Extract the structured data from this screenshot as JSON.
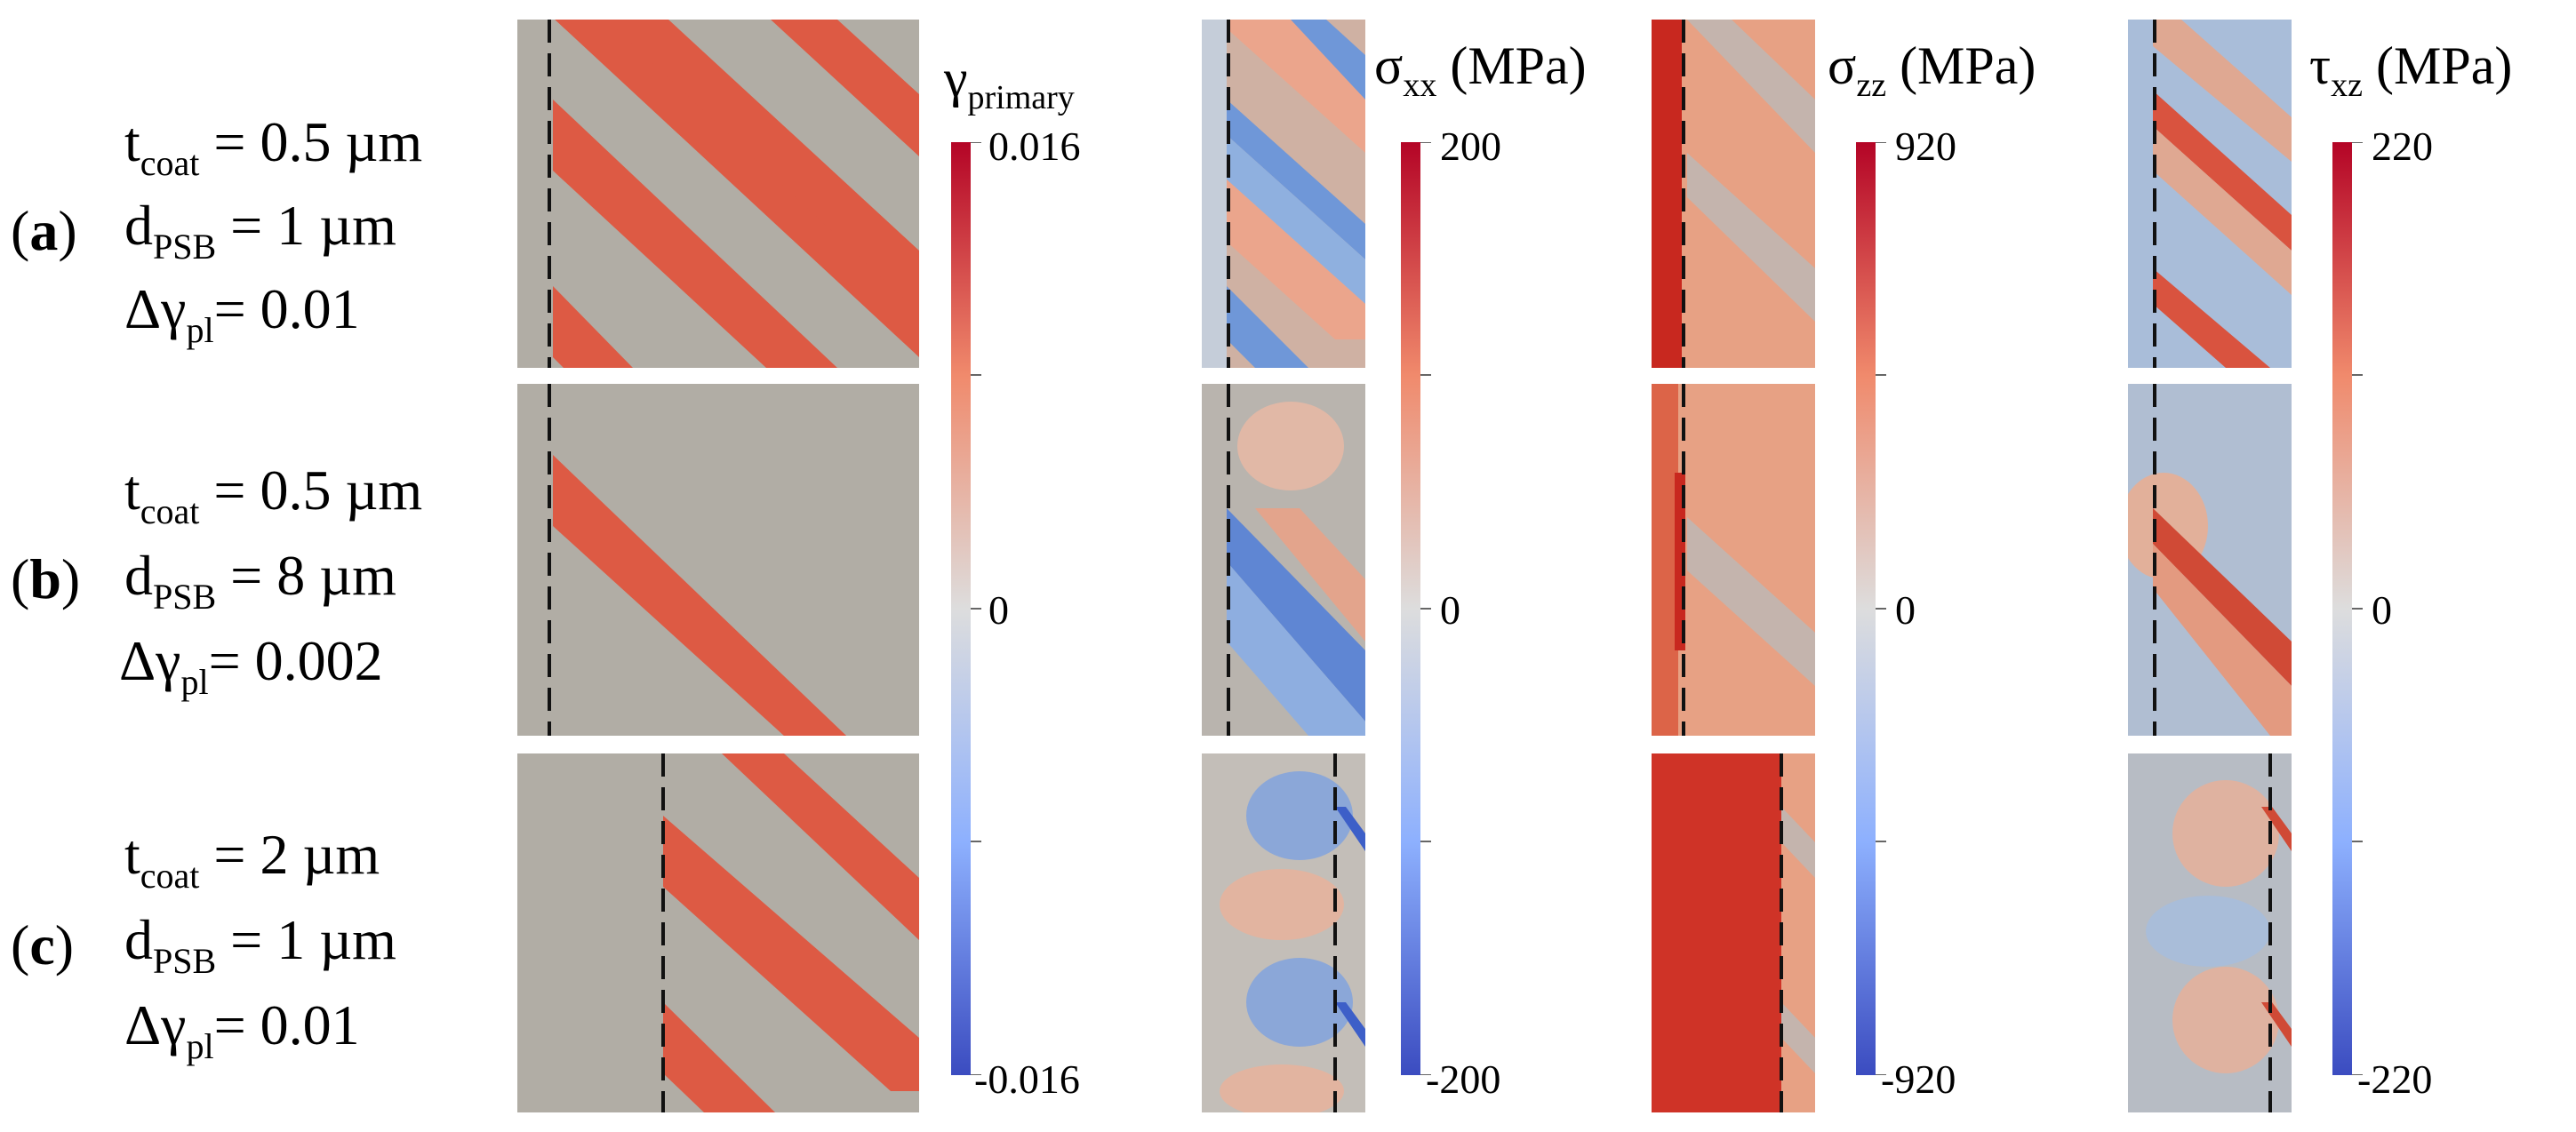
{
  "rows": [
    {
      "id": "a",
      "label": "a",
      "t_coat": {
        "symbol": "t",
        "sub": "coat",
        "rest": " = 0.5 µm"
      },
      "d_psb": {
        "symbol": "d",
        "sub": "PSB",
        "rest": " = 1 µm"
      },
      "dgamma": {
        "symbol": "Δγ",
        "sub": "pl",
        "rest": "= 0.01"
      }
    },
    {
      "id": "b",
      "label": "b",
      "t_coat": {
        "symbol": "t",
        "sub": "coat",
        "rest": " = 0.5 µm"
      },
      "d_psb": {
        "symbol": "d",
        "sub": "PSB",
        "rest": " = 8 µm"
      },
      "dgamma": {
        "symbol": "Δγ",
        "sub": "pl",
        "rest": "= 0.002"
      }
    },
    {
      "id": "c",
      "label": "c",
      "t_coat": {
        "symbol": "t",
        "sub": "coat",
        "rest": " = 2 µm"
      },
      "d_psb": {
        "symbol": "d",
        "sub": "PSB",
        "rest": " = 1 µm"
      },
      "dgamma": {
        "symbol": "Δγ",
        "sub": "pl",
        "rest": "= 0.01"
      }
    }
  ],
  "colorbars": [
    {
      "id": "gamma",
      "symbol": "γ",
      "sub": "primary",
      "unit": "",
      "max": "0.016",
      "mid": "0",
      "min": "-0.016"
    },
    {
      "id": "sxx",
      "symbol": "σ",
      "sub": "xx",
      "unit": " (MPa)",
      "max": "200",
      "mid": "0",
      "min": "-200"
    },
    {
      "id": "szz",
      "symbol": "σ",
      "sub": "zz",
      "unit": " (MPa)",
      "max": "920",
      "mid": "0",
      "min": "-920"
    },
    {
      "id": "txz",
      "symbol": "τ",
      "sub": "xz",
      "unit": " (MPa)",
      "max": "220",
      "mid": "0",
      "min": "-220"
    }
  ],
  "colors": {
    "neutral": "#b1ada5",
    "band_red": "#dd5a44",
    "deep_red": "#c8281f",
    "light_red": "#eda085",
    "blue": "#6f97d8",
    "deep_blue": "#3d5fc8",
    "light_blue": "#a9bdd9",
    "scale_top": "#b40426",
    "scale_mid": "#dddddd",
    "scale_bottom": "#3b4cc0"
  }
}
